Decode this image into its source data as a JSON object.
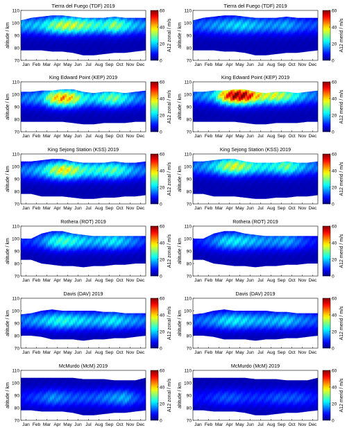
{
  "figure": {
    "months": [
      "Jan",
      "Feb",
      "Mar",
      "Apr",
      "May",
      "Jun",
      "Jul",
      "Aug",
      "Sep",
      "Oct",
      "Nov",
      "Dec"
    ],
    "yticks": [
      70,
      80,
      90,
      100,
      110
    ],
    "colorbar_ticks": [
      0,
      20,
      40,
      60
    ],
    "colormap": "jet",
    "colors": {
      "low": "#00007f",
      "mid": "#7fff7f",
      "high": "#7f0000"
    }
  },
  "chart_data": [
    {
      "type": "heatmap",
      "station": "TDF",
      "title": "Tierra del Fuego (TDF) 2019",
      "component": "zonal",
      "ylabel": "altitude / km",
      "clabel": "A12 zonal / m/s",
      "xlim": [
        "Jan",
        "Dec"
      ],
      "ylim": [
        70,
        110
      ],
      "clim": [
        0,
        60
      ],
      "altitude_bottom": [
        78,
        78,
        78,
        77,
        77,
        76,
        74,
        74,
        75,
        76,
        76,
        77,
        78
      ],
      "altitude_top": [
        102,
        104,
        105,
        106,
        106,
        105,
        104,
        104,
        104,
        105,
        104,
        104,
        104
      ],
      "monthly_peak": [
        18,
        18,
        20,
        28,
        34,
        34,
        30,
        26,
        24,
        32,
        24,
        18,
        16
      ],
      "peak_altitude": 98
    },
    {
      "type": "heatmap",
      "station": "TDF",
      "title": "Tierra del Fuego (TDF) 2019",
      "component": "merid",
      "ylabel": "altitude / km",
      "clabel": "A12 merid / m/s",
      "xlim": [
        "Jan",
        "Dec"
      ],
      "ylim": [
        70,
        110
      ],
      "clim": [
        0,
        60
      ],
      "altitude_bottom": [
        78,
        78,
        78,
        77,
        77,
        76,
        74,
        74,
        75,
        76,
        76,
        77,
        78
      ],
      "altitude_top": [
        102,
        104,
        105,
        106,
        106,
        105,
        104,
        104,
        104,
        105,
        104,
        104,
        104
      ],
      "monthly_peak": [
        12,
        14,
        16,
        18,
        20,
        20,
        18,
        16,
        16,
        18,
        14,
        12,
        12
      ],
      "peak_altitude": 98
    },
    {
      "type": "heatmap",
      "station": "KEP",
      "title": "King Edward Point (KEP) 2019",
      "component": "zonal",
      "ylabel": "altitude / km",
      "clabel": "A12 zonal / m/s",
      "xlim": [
        "Jan",
        "Dec"
      ],
      "ylim": [
        70,
        110
      ],
      "clim": [
        0,
        60
      ],
      "altitude_bottom": [
        78,
        78,
        78,
        78,
        78,
        77,
        76,
        76,
        77,
        77,
        77,
        78,
        78
      ],
      "altitude_top": [
        102,
        102,
        103,
        103,
        104,
        104,
        102,
        101,
        102,
        102,
        101,
        102,
        103
      ],
      "monthly_peak": [
        14,
        16,
        18,
        36,
        44,
        38,
        24,
        20,
        26,
        30,
        22,
        16,
        14
      ],
      "peak_altitude": 97
    },
    {
      "type": "heatmap",
      "station": "KEP",
      "title": "King Edward Point (KEP) 2019",
      "component": "merid",
      "ylabel": "altitude / km",
      "clabel": "A12 merid / m/s",
      "xlim": [
        "Jan",
        "Dec"
      ],
      "ylim": [
        70,
        110
      ],
      "clim": [
        0,
        60
      ],
      "altitude_bottom": [
        78,
        78,
        78,
        78,
        78,
        77,
        76,
        76,
        77,
        77,
        77,
        78,
        78
      ],
      "altitude_top": [
        102,
        102,
        103,
        103,
        104,
        104,
        102,
        101,
        102,
        102,
        101,
        102,
        103
      ],
      "monthly_peak": [
        14,
        16,
        20,
        44,
        60,
        58,
        42,
        34,
        36,
        30,
        22,
        16,
        14
      ],
      "peak_altitude": 99
    },
    {
      "type": "heatmap",
      "station": "KSS",
      "title": "King Sejong Station (KSS) 2019",
      "component": "zonal",
      "ylabel": "altitude / km",
      "clabel": "A12 zonal / m/s",
      "xlim": [
        "Jan",
        "Dec"
      ],
      "ylim": [
        70,
        110
      ],
      "clim": [
        0,
        60
      ],
      "altitude_bottom": [
        78,
        78,
        76,
        76,
        76,
        75,
        74,
        74,
        75,
        75,
        76,
        76,
        77
      ],
      "altitude_top": [
        104,
        104,
        105,
        106,
        106,
        104,
        103,
        103,
        103,
        104,
        103,
        103,
        104
      ],
      "monthly_peak": [
        14,
        16,
        20,
        30,
        38,
        34,
        26,
        24,
        26,
        28,
        22,
        16,
        14
      ],
      "peak_altitude": 97
    },
    {
      "type": "heatmap",
      "station": "KSS",
      "title": "King Sejong Station (KSS) 2019",
      "component": "merid",
      "ylabel": "altitude / km",
      "clabel": "A12 merid / m/s",
      "xlim": [
        "Jan",
        "Dec"
      ],
      "ylim": [
        70,
        110
      ],
      "clim": [
        0,
        60
      ],
      "altitude_bottom": [
        78,
        78,
        76,
        76,
        76,
        75,
        74,
        74,
        75,
        75,
        76,
        76,
        77
      ],
      "altitude_top": [
        104,
        104,
        105,
        106,
        106,
        104,
        103,
        103,
        103,
        104,
        103,
        103,
        104
      ],
      "monthly_peak": [
        14,
        16,
        20,
        30,
        36,
        30,
        24,
        22,
        24,
        30,
        22,
        16,
        14
      ],
      "peak_altitude": 100
    },
    {
      "type": "heatmap",
      "station": "ROT",
      "title": "Rothera (ROT) 2019",
      "component": "zonal",
      "ylabel": "altitude / km",
      "clabel": "A12 zonal / m/s",
      "xlim": [
        "Jan",
        "Dec"
      ],
      "ylim": [
        70,
        110
      ],
      "clim": [
        0,
        60
      ],
      "altitude_bottom": [
        83,
        83,
        80,
        79,
        78,
        78,
        77,
        78,
        78,
        79,
        79,
        80,
        80
      ],
      "altitude_top": [
        100,
        100,
        104,
        106,
        106,
        104,
        103,
        102,
        102,
        102,
        102,
        102,
        102
      ],
      "monthly_peak": [
        10,
        10,
        14,
        22,
        26,
        24,
        20,
        18,
        20,
        22,
        18,
        14,
        10
      ],
      "peak_altitude": 98
    },
    {
      "type": "heatmap",
      "station": "ROT",
      "title": "Rothera (ROT) 2019",
      "component": "merid",
      "ylabel": "altitude / km",
      "clabel": "A12 merid / m/s",
      "xlim": [
        "Jan",
        "Dec"
      ],
      "ylim": [
        70,
        110
      ],
      "clim": [
        0,
        60
      ],
      "altitude_bottom": [
        83,
        83,
        80,
        79,
        78,
        78,
        77,
        78,
        78,
        79,
        79,
        80,
        80
      ],
      "altitude_top": [
        100,
        100,
        104,
        106,
        106,
        104,
        103,
        102,
        102,
        102,
        102,
        102,
        102
      ],
      "monthly_peak": [
        8,
        10,
        14,
        20,
        22,
        20,
        18,
        16,
        16,
        18,
        14,
        10,
        8
      ],
      "peak_altitude": 98
    },
    {
      "type": "heatmap",
      "station": "DAV",
      "title": "Davis (DAV) 2019",
      "component": "zonal",
      "ylabel": "altitude / km",
      "clabel": "A12 zonal / m/s",
      "xlim": [
        "Jan",
        "Dec"
      ],
      "ylim": [
        70,
        110
      ],
      "clim": [
        0,
        60
      ],
      "altitude_bottom": [
        80,
        80,
        79,
        77,
        77,
        77,
        76,
        77,
        77,
        78,
        78,
        79,
        80
      ],
      "altitude_top": [
        97,
        98,
        100,
        101,
        100,
        100,
        100,
        100,
        99,
        99,
        98,
        98,
        98
      ],
      "monthly_peak": [
        14,
        16,
        18,
        22,
        24,
        22,
        20,
        18,
        20,
        22,
        18,
        16,
        14
      ],
      "peak_altitude": 92
    },
    {
      "type": "heatmap",
      "station": "DAV",
      "title": "Davis (DAV) 2019",
      "component": "merid",
      "ylabel": "altitude / km",
      "clabel": "A12 merid / m/s",
      "xlim": [
        "Jan",
        "Dec"
      ],
      "ylim": [
        70,
        110
      ],
      "clim": [
        0,
        60
      ],
      "altitude_bottom": [
        80,
        80,
        79,
        77,
        77,
        77,
        76,
        77,
        77,
        78,
        78,
        79,
        80
      ],
      "altitude_top": [
        97,
        98,
        100,
        101,
        100,
        100,
        100,
        100,
        99,
        99,
        98,
        98,
        98
      ],
      "monthly_peak": [
        12,
        14,
        16,
        20,
        22,
        20,
        18,
        18,
        18,
        20,
        16,
        14,
        12
      ],
      "peak_altitude": 92
    },
    {
      "type": "heatmap",
      "station": "McM",
      "title": "McMurdo (McM) 2019",
      "component": "zonal",
      "ylabel": "altitude / km",
      "clabel": "A12 zonal / m/s",
      "xlim": [
        "Jan",
        "Dec"
      ],
      "ylim": [
        70,
        110
      ],
      "clim": [
        0,
        60
      ],
      "altitude_bottom": [
        78,
        78,
        77,
        77,
        77,
        76,
        74,
        74,
        75,
        76,
        76,
        77,
        78
      ],
      "altitude_top": [
        104,
        104,
        104,
        104,
        104,
        104,
        103,
        103,
        103,
        102,
        102,
        102,
        104
      ],
      "monthly_peak": [
        8,
        10,
        12,
        16,
        14,
        12,
        12,
        12,
        14,
        16,
        18,
        12,
        8
      ],
      "peak_altitude": 88
    },
    {
      "type": "heatmap",
      "station": "McM",
      "title": "McMurdo (McM) 2019",
      "component": "merid",
      "ylabel": "altitude / km",
      "clabel": "A12 merid / m/s",
      "xlim": [
        "Jan",
        "Dec"
      ],
      "ylim": [
        70,
        110
      ],
      "clim": [
        0,
        60
      ],
      "altitude_bottom": [
        78,
        78,
        77,
        77,
        77,
        76,
        74,
        74,
        75,
        76,
        76,
        77,
        78
      ],
      "altitude_top": [
        104,
        104,
        104,
        104,
        104,
        104,
        103,
        103,
        103,
        102,
        102,
        102,
        104
      ],
      "monthly_peak": [
        8,
        8,
        10,
        12,
        12,
        10,
        10,
        10,
        12,
        12,
        12,
        10,
        8
      ],
      "peak_altitude": 88
    }
  ]
}
